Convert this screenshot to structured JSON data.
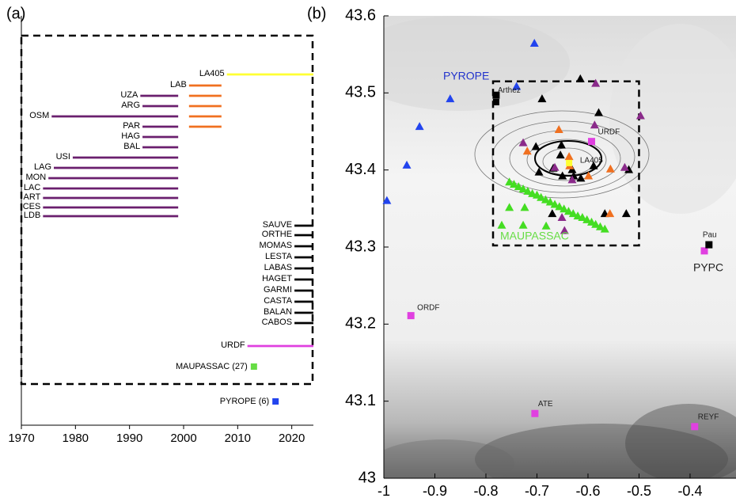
{
  "chart_data": [
    {
      "type": "timeline",
      "panel_label": "(a)",
      "xlim": [
        1970,
        2024
      ],
      "xticks": [
        1970,
        1980,
        1990,
        2000,
        2010,
        2020
      ],
      "rows": [
        {
          "label": "LA405",
          "periods": [
            {
              "start": 2008,
              "end": 2024,
              "color": "#ffff33"
            }
          ]
        },
        {
          "label": "LAB",
          "periods": [
            {
              "start": 2001,
              "end": 2007,
              "color": "#f07020"
            }
          ]
        },
        {
          "label": "UZA",
          "periods": [
            {
              "start": 1992,
              "end": 1999,
              "color": "#6a1f6e"
            },
            {
              "start": 2001,
              "end": 2007,
              "color": "#f07020"
            }
          ]
        },
        {
          "label": "ARG",
          "periods": [
            {
              "start": 1992.4,
              "end": 1999,
              "color": "#6a1f6e"
            },
            {
              "start": 2001,
              "end": 2007,
              "color": "#f07020"
            }
          ]
        },
        {
          "label": "OSM",
          "periods": [
            {
              "start": 1975.6,
              "end": 1999,
              "color": "#6a1f6e"
            },
            {
              "start": 2001,
              "end": 2007,
              "color": "#f07020"
            }
          ]
        },
        {
          "label": "PAR",
          "periods": [
            {
              "start": 1992.4,
              "end": 1999,
              "color": "#6a1f6e"
            },
            {
              "start": 2001,
              "end": 2007,
              "color": "#f07020"
            }
          ]
        },
        {
          "label": "HAG",
          "periods": [
            {
              "start": 1992.4,
              "end": 1999,
              "color": "#6a1f6e"
            }
          ]
        },
        {
          "label": "BAL",
          "periods": [
            {
              "start": 1992.4,
              "end": 1999,
              "color": "#6a1f6e"
            }
          ]
        },
        {
          "label": "USI",
          "periods": [
            {
              "start": 1979.5,
              "end": 1999,
              "color": "#6a1f6e"
            }
          ]
        },
        {
          "label": "LAG",
          "periods": [
            {
              "start": 1976,
              "end": 1999,
              "color": "#6a1f6e"
            }
          ]
        },
        {
          "label": "MON",
          "periods": [
            {
              "start": 1975,
              "end": 1999,
              "color": "#6a1f6e"
            }
          ]
        },
        {
          "label": "LAC",
          "periods": [
            {
              "start": 1974,
              "end": 1999,
              "color": "#6a1f6e"
            }
          ]
        },
        {
          "label": "ART",
          "periods": [
            {
              "start": 1974,
              "end": 1999,
              "color": "#6a1f6e"
            }
          ]
        },
        {
          "label": "CES",
          "periods": [
            {
              "start": 1974,
              "end": 1999,
              "color": "#6a1f6e"
            }
          ]
        },
        {
          "label": "LDB",
          "periods": [
            {
              "start": 1974,
              "end": 1999,
              "color": "#6a1f6e"
            }
          ]
        },
        {
          "label": "SAUVE",
          "periods": [
            {
              "start": 2020.5,
              "end": 2024,
              "color": "#000000"
            }
          ]
        },
        {
          "label": "ORTHE",
          "periods": [
            {
              "start": 2020.5,
              "end": 2024,
              "color": "#000000"
            }
          ]
        },
        {
          "label": "MOMAS",
          "periods": [
            {
              "start": 2020.5,
              "end": 2024,
              "color": "#000000"
            }
          ]
        },
        {
          "label": "LESTA",
          "periods": [
            {
              "start": 2020.5,
              "end": 2024,
              "color": "#000000"
            }
          ]
        },
        {
          "label": "LABAS",
          "periods": [
            {
              "start": 2020.5,
              "end": 2024,
              "color": "#000000"
            }
          ]
        },
        {
          "label": "HAGET",
          "periods": [
            {
              "start": 2020.5,
              "end": 2024,
              "color": "#000000"
            }
          ]
        },
        {
          "label": "GARMI",
          "periods": [
            {
              "start": 2020.5,
              "end": 2024,
              "color": "#000000"
            }
          ]
        },
        {
          "label": "CASTA",
          "periods": [
            {
              "start": 2020.5,
              "end": 2024,
              "color": "#000000"
            }
          ]
        },
        {
          "label": "BALAN",
          "periods": [
            {
              "start": 2020.5,
              "end": 2024,
              "color": "#000000"
            }
          ]
        },
        {
          "label": "CABOS",
          "periods": [
            {
              "start": 2020.5,
              "end": 2024,
              "color": "#000000"
            }
          ]
        },
        {
          "label": "URDF",
          "periods": [
            {
              "start": 2011.8,
              "end": 2024,
              "color": "#e040e0"
            }
          ]
        }
      ],
      "points": [
        {
          "label": "MAUPASSAC (27)",
          "x": 2013,
          "color": "#66dd44"
        },
        {
          "label": "PYROPE (6)",
          "x": 2017,
          "color": "#2244ee"
        }
      ]
    },
    {
      "type": "map",
      "panel_label": "(b)",
      "xlim": [
        -1,
        -0.31
      ],
      "xticks": [
        -1,
        -0.9,
        -0.8,
        -0.7,
        -0.6,
        -0.5,
        -0.4
      ],
      "ylim": [
        43,
        43.6
      ],
      "yticks": [
        43,
        43.1,
        43.2,
        43.3,
        43.4,
        43.5,
        43.6
      ],
      "box": {
        "x": [
          -0.786,
          -0.5
        ],
        "y": [
          43.302,
          43.515
        ]
      },
      "annotations": [
        "PYROPE",
        "MAUPASSAC"
      ],
      "annotation_colors": [
        "#2233cc",
        "#66dd44"
      ],
      "markers": [
        {
          "shape": "triangle",
          "color": "#2244ee",
          "x": [
            -0.705,
            -0.74,
            -0.87,
            -0.93,
            -0.955,
            -0.994
          ],
          "y": [
            43.564,
            43.508,
            43.492,
            43.456,
            43.406,
            43.36
          ]
        },
        {
          "shape": "triangle",
          "color": "#44dd22",
          "x": [
            -0.754,
            -0.745,
            -0.736,
            -0.727,
            -0.718,
            -0.709,
            -0.7,
            -0.692,
            -0.683,
            -0.674,
            -0.665,
            -0.656,
            -0.647,
            -0.638,
            -0.629,
            -0.62,
            -0.611,
            -0.602,
            -0.593,
            -0.585,
            -0.576,
            -0.567,
            -0.754,
            -0.724,
            -0.769,
            -0.727,
            -0.682
          ],
          "y": [
            43.384,
            43.381,
            43.378,
            43.375,
            43.372,
            43.369,
            43.367,
            43.364,
            43.361,
            43.358,
            43.355,
            43.352,
            43.349,
            43.346,
            43.343,
            43.34,
            43.338,
            43.335,
            43.332,
            43.329,
            43.326,
            43.323,
            43.351,
            43.351,
            43.328,
            43.328,
            43.327
          ]
        },
        {
          "shape": "triangle",
          "color": "#000000",
          "x": [
            -0.69,
            -0.702,
            -0.652,
            -0.654,
            -0.696,
            -0.668,
            -0.65,
            -0.628,
            -0.614,
            -0.589,
            -0.579,
            -0.615,
            -0.67,
            -0.567,
            -0.525,
            -0.52,
            -0.631
          ],
          "y": [
            43.492,
            43.43,
            43.432,
            43.419,
            43.397,
            43.402,
            43.392,
            43.392,
            43.389,
            43.405,
            43.474,
            43.518,
            43.343,
            43.343,
            43.343,
            43.4,
            43.4
          ]
        },
        {
          "shape": "triangle",
          "color": "#8a2a8a",
          "x": [
            -0.727,
            -0.665,
            -0.651,
            -0.646,
            -0.587,
            -0.585,
            -0.497,
            -0.528,
            -0.631
          ],
          "y": [
            43.435,
            43.403,
            43.338,
            43.321,
            43.458,
            43.512,
            43.47,
            43.403,
            43.387
          ]
        },
        {
          "shape": "triangle",
          "color": "#f07020",
          "x": [
            -0.657,
            -0.637,
            -0.599,
            -0.556,
            -0.557,
            -0.719,
            -0.636
          ],
          "y": [
            43.452,
            43.417,
            43.392,
            43.401,
            43.343,
            43.424,
            43.405
          ]
        },
        {
          "shape": "square",
          "color": "#000000",
          "x": [
            -0.78
          ],
          "y": [
            43.488
          ]
        },
        {
          "shape": "square",
          "color": "#ffff33",
          "x": [
            -0.637
          ],
          "y": [
            43.409
          ]
        }
      ],
      "stations": [
        {
          "label": "URDF",
          "x": -0.593,
          "y": 43.437,
          "color": "#e040e0"
        },
        {
          "label": "ORDF",
          "x": -0.947,
          "y": 43.211,
          "color": "#e040e0"
        },
        {
          "label": "ATE",
          "x": -0.704,
          "y": 43.084,
          "color": "#e040e0"
        },
        {
          "label": "REYF",
          "x": -0.391,
          "y": 43.067,
          "color": "#e040e0"
        },
        {
          "label": "PYPC",
          "x": -0.372,
          "y": 43.295,
          "color": "#e040e0"
        },
        {
          "label": "Pau",
          "x": -0.363,
          "y": 43.303,
          "color": "#000000"
        },
        {
          "label": "Arthez",
          "x": -0.78,
          "y": 43.497,
          "color": "#000000"
        },
        {
          "label": "LA405",
          "x": -0.625,
          "y": 43.411,
          "color": "#ffff33"
        }
      ]
    }
  ]
}
